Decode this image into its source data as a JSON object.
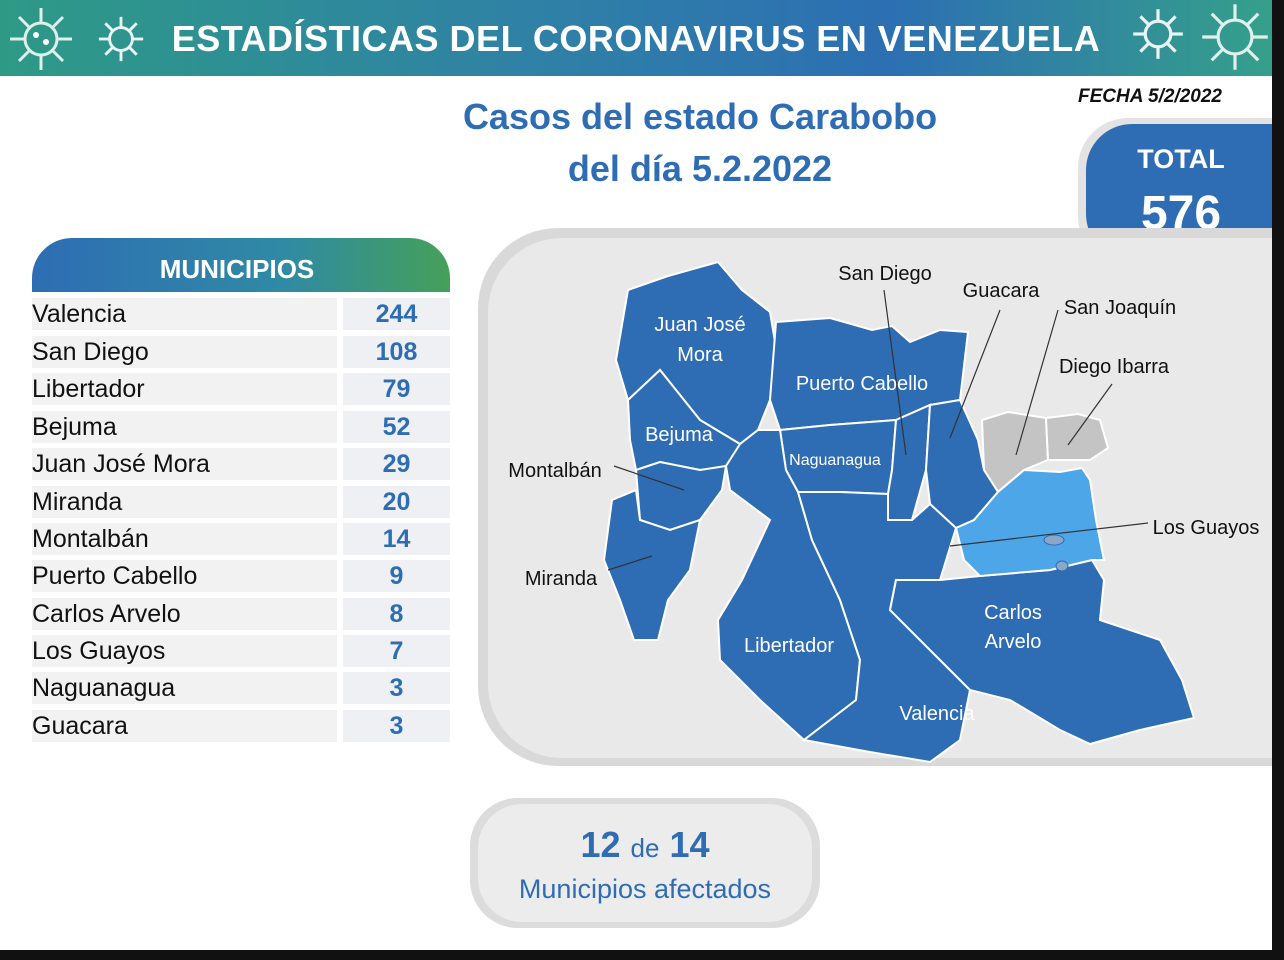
{
  "header": {
    "title": "ESTADÍSTICAS DEL CORONAVIRUS EN VENEZUELA"
  },
  "fecha": "FECHA 5/2/2022",
  "title": {
    "line1": "Casos del estado Carabobo",
    "line2": "del día 5.2.2022"
  },
  "total": {
    "label": "TOTAL",
    "value": "576"
  },
  "municipios": {
    "header": "MUNICIPIOS",
    "rows": [
      {
        "name": "Valencia",
        "value": "244"
      },
      {
        "name": "San Diego",
        "value": "108"
      },
      {
        "name": "Libertador",
        "value": "79"
      },
      {
        "name": "Bejuma",
        "value": "52"
      },
      {
        "name": "Juan José Mora",
        "value": "29"
      },
      {
        "name": "Miranda",
        "value": "20"
      },
      {
        "name": "Montalbán",
        "value": "14"
      },
      {
        "name": "Puerto Cabello",
        "value": "9"
      },
      {
        "name": "Carlos Arvelo",
        "value": "8"
      },
      {
        "name": "Los Guayos",
        "value": "7"
      },
      {
        "name": "Naguanagua",
        "value": "3"
      },
      {
        "name": "Guacara",
        "value": "3"
      }
    ]
  },
  "map": {
    "colors": {
      "affected": "#2e6db4",
      "highlight": "#4da6e8",
      "unaffected": "#c4c4c4"
    },
    "labels": {
      "juan_jose_mora_1": "Juan José",
      "juan_jose_mora_2": "Mora",
      "puerto_cabello": "Puerto Cabello",
      "bejuma": "Bejuma",
      "naguanagua": "Naguanagua",
      "carlos_arvelo_1": "Carlos",
      "carlos_arvelo_2": "Arvelo",
      "libertador": "Libertador",
      "valencia": "Valencia",
      "san_diego": "San Diego",
      "guacara": "Guacara",
      "san_joaquin": "San Joaquín",
      "diego_ibarra": "Diego Ibarra",
      "montalban": "Montalbán",
      "miranda": "Miranda",
      "los_guayos": "Los Guayos"
    }
  },
  "summary": {
    "affected": "12",
    "de": "de",
    "total": "14",
    "label": "Municipios afectados"
  }
}
